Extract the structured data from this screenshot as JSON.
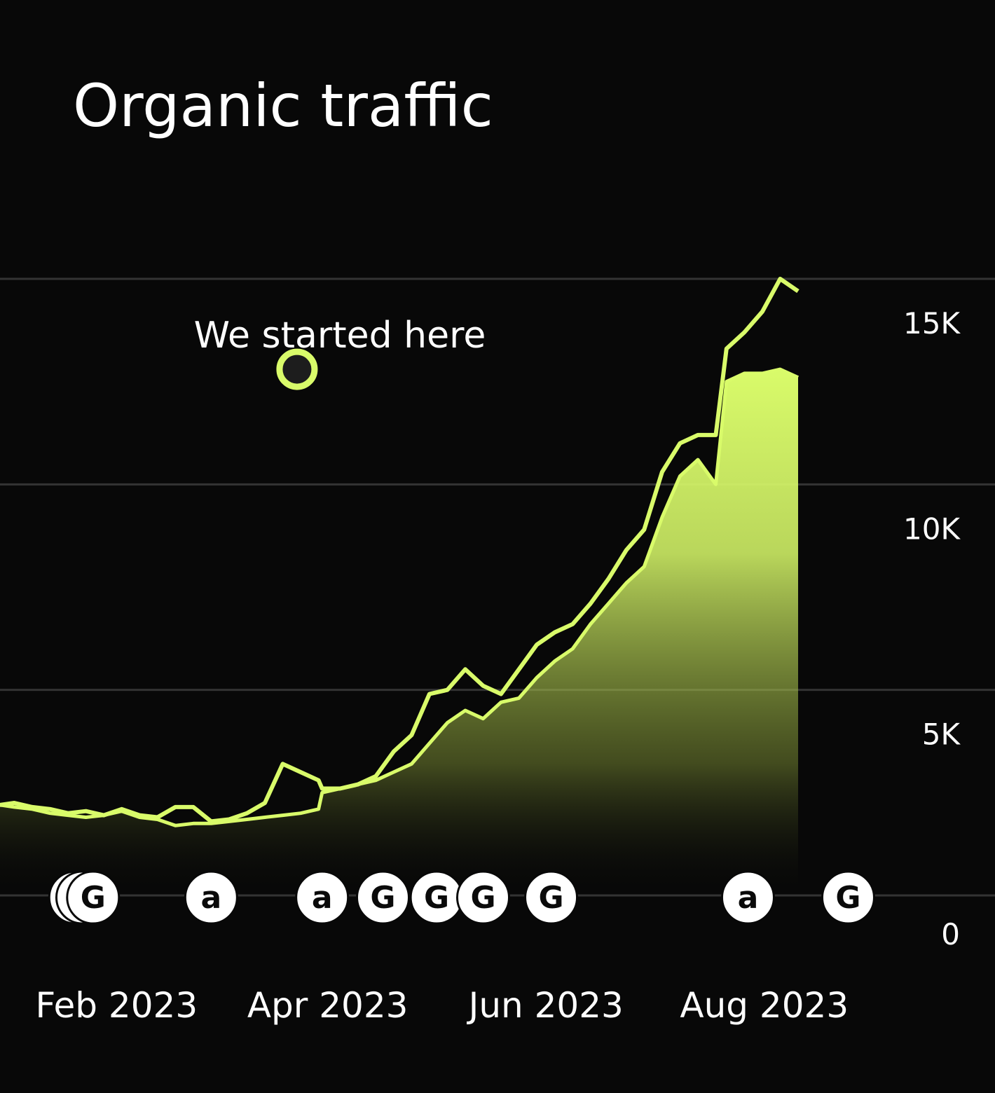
{
  "title": "Organic traffic",
  "colors": {
    "background": "#080808",
    "accent": "#d9fb6a",
    "grid": "#333333",
    "text": "#ffffff",
    "marker_fill": "#ffffff"
  },
  "annotation": {
    "label": "We started here",
    "date": "2023-03-25",
    "value": 12800
  },
  "chart_data": {
    "type": "area",
    "title": "Organic traffic",
    "xlabel": "",
    "ylabel": "",
    "x_range": [
      "2023-01-01",
      "2023-08-31"
    ],
    "ylim": [
      0,
      15000
    ],
    "y_ticks": [
      {
        "value": 0,
        "label": "0"
      },
      {
        "value": 5000,
        "label": "5K"
      },
      {
        "value": 10000,
        "label": "10K"
      },
      {
        "value": 15000,
        "label": "15K"
      }
    ],
    "x_ticks": [
      {
        "date": "2023-02-01",
        "label": "Feb 2023"
      },
      {
        "date": "2023-04-01",
        "label": "Apr 2023"
      },
      {
        "date": "2023-06-01",
        "label": "Jun 2023"
      },
      {
        "date": "2023-08-01",
        "label": "Aug 2023"
      }
    ],
    "grid": true,
    "series": [
      {
        "style": "filled-area",
        "points": [
          [
            "2023-01-01",
            2200
          ],
          [
            "2023-01-05",
            2150
          ],
          [
            "2023-01-10",
            2100
          ],
          [
            "2023-01-15",
            2000
          ],
          [
            "2023-01-20",
            1950
          ],
          [
            "2023-01-25",
            1900
          ],
          [
            "2023-01-30",
            1950
          ],
          [
            "2023-02-04",
            2050
          ],
          [
            "2023-02-09",
            1900
          ],
          [
            "2023-02-14",
            1850
          ],
          [
            "2023-02-19",
            1700
          ],
          [
            "2023-02-24",
            1750
          ],
          [
            "2023-03-01",
            1750
          ],
          [
            "2023-03-06",
            1800
          ],
          [
            "2023-03-11",
            1850
          ],
          [
            "2023-03-16",
            1900
          ],
          [
            "2023-03-21",
            1950
          ],
          [
            "2023-03-26",
            2000
          ],
          [
            "2023-03-31",
            2100
          ],
          [
            "2023-04-01",
            2500
          ],
          [
            "2023-04-06",
            2600
          ],
          [
            "2023-04-11",
            2700
          ],
          [
            "2023-04-16",
            2800
          ],
          [
            "2023-04-21",
            3000
          ],
          [
            "2023-04-26",
            3200
          ],
          [
            "2023-05-01",
            3700
          ],
          [
            "2023-05-06",
            4200
          ],
          [
            "2023-05-11",
            4500
          ],
          [
            "2023-05-16",
            4300
          ],
          [
            "2023-05-21",
            4700
          ],
          [
            "2023-05-26",
            4800
          ],
          [
            "2023-05-31",
            5300
          ],
          [
            "2023-06-05",
            5700
          ],
          [
            "2023-06-10",
            6000
          ],
          [
            "2023-06-15",
            6600
          ],
          [
            "2023-06-20",
            7100
          ],
          [
            "2023-06-25",
            7600
          ],
          [
            "2023-06-30",
            8000
          ],
          [
            "2023-07-05",
            9200
          ],
          [
            "2023-07-10",
            10200
          ],
          [
            "2023-07-15",
            10600
          ],
          [
            "2023-07-20",
            10000
          ],
          [
            "2023-07-23",
            12500
          ],
          [
            "2023-07-28",
            12700
          ],
          [
            "2023-08-02",
            12700
          ],
          [
            "2023-08-07",
            12800
          ],
          [
            "2023-08-12",
            12600
          ]
        ]
      },
      {
        "style": "line",
        "points": [
          [
            "2023-01-01",
            2200
          ],
          [
            "2023-01-05",
            2250
          ],
          [
            "2023-01-10",
            2150
          ],
          [
            "2023-01-15",
            2100
          ],
          [
            "2023-01-20",
            2000
          ],
          [
            "2023-01-25",
            2050
          ],
          [
            "2023-01-30",
            1950
          ],
          [
            "2023-02-04",
            2100
          ],
          [
            "2023-02-09",
            1950
          ],
          [
            "2023-02-14",
            1900
          ],
          [
            "2023-02-19",
            2150
          ],
          [
            "2023-02-24",
            2150
          ],
          [
            "2023-03-01",
            1800
          ],
          [
            "2023-03-06",
            1850
          ],
          [
            "2023-03-11",
            2000
          ],
          [
            "2023-03-16",
            2250
          ],
          [
            "2023-03-21",
            3200
          ],
          [
            "2023-03-26",
            3000
          ],
          [
            "2023-03-31",
            2800
          ],
          [
            "2023-04-01",
            2600
          ],
          [
            "2023-04-06",
            2600
          ],
          [
            "2023-04-11",
            2700
          ],
          [
            "2023-04-16",
            2900
          ],
          [
            "2023-04-21",
            3500
          ],
          [
            "2023-04-26",
            3900
          ],
          [
            "2023-05-01",
            4900
          ],
          [
            "2023-05-06",
            5000
          ],
          [
            "2023-05-11",
            5500
          ],
          [
            "2023-05-16",
            5100
          ],
          [
            "2023-05-21",
            4900
          ],
          [
            "2023-05-26",
            5500
          ],
          [
            "2023-05-31",
            6100
          ],
          [
            "2023-06-05",
            6400
          ],
          [
            "2023-06-10",
            6600
          ],
          [
            "2023-06-15",
            7100
          ],
          [
            "2023-06-20",
            7700
          ],
          [
            "2023-06-25",
            8400
          ],
          [
            "2023-06-30",
            8900
          ],
          [
            "2023-07-05",
            10300
          ],
          [
            "2023-07-10",
            11000
          ],
          [
            "2023-07-15",
            11200
          ],
          [
            "2023-07-20",
            11200
          ],
          [
            "2023-07-23",
            13300
          ],
          [
            "2023-07-28",
            13700
          ],
          [
            "2023-08-02",
            14200
          ],
          [
            "2023-08-07",
            15000
          ],
          [
            "2023-08-12",
            14700
          ]
        ]
      }
    ],
    "event_markers": [
      {
        "date": "2023-01-22",
        "letter": "G"
      },
      {
        "date": "2023-01-24",
        "letter": "a"
      },
      {
        "date": "2023-01-27",
        "letter": "G"
      },
      {
        "date": "2023-03-01",
        "letter": "a"
      },
      {
        "date": "2023-04-01",
        "letter": "a"
      },
      {
        "date": "2023-04-18",
        "letter": "G"
      },
      {
        "date": "2023-05-03",
        "letter": "G"
      },
      {
        "date": "2023-05-16",
        "letter": "G"
      },
      {
        "date": "2023-06-04",
        "letter": "G"
      },
      {
        "date": "2023-07-29",
        "letter": "a"
      },
      {
        "date": "2023-08-26",
        "letter": "G"
      }
    ]
  }
}
